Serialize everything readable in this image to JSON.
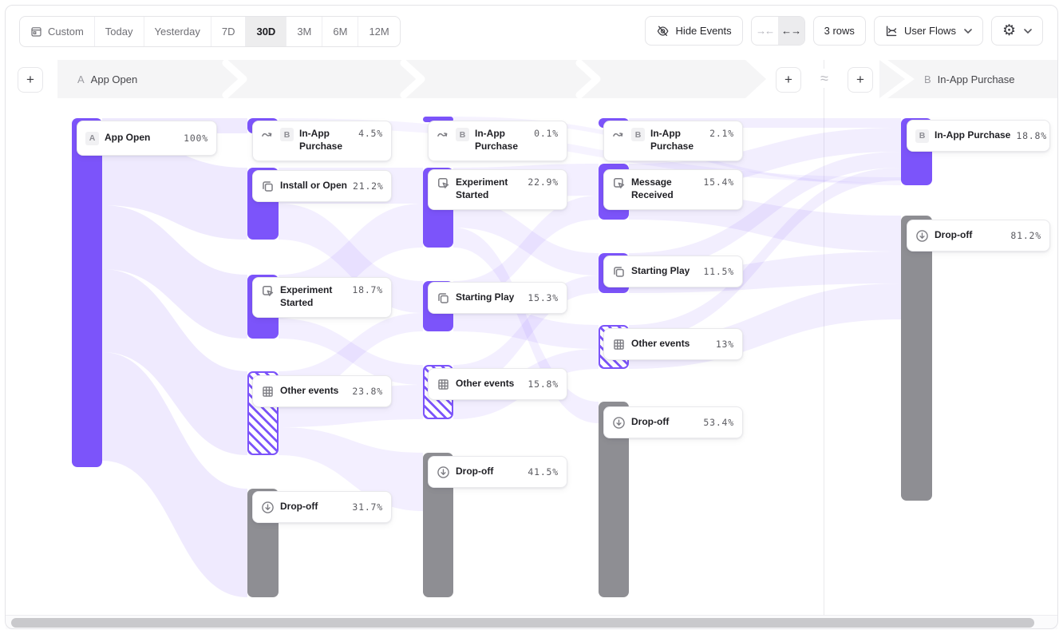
{
  "toolbar": {
    "date_ranges": [
      "Custom",
      "Today",
      "Yesterday",
      "7D",
      "30D",
      "3M",
      "6M",
      "12M"
    ],
    "active_range": "30D",
    "hide_events": "Hide Events",
    "rows": "3 rows",
    "view": "User Flows"
  },
  "steps": {
    "a_label": "A",
    "a_event": "App Open",
    "b_label": "B",
    "b_event": "In-App Purchase",
    "approx": "≈",
    "add": "+"
  },
  "flow_nodes": {
    "c0_app_open": {
      "label": "App Open",
      "pct": "100%",
      "badge": "A"
    },
    "c1_inapp": {
      "label": "In-App Purchase",
      "pct": "4.5%",
      "badge": "B"
    },
    "c1_install": {
      "label": "Install or Open",
      "pct": "21.2%"
    },
    "c1_experiment": {
      "label": "Experiment Started",
      "pct": "18.7%"
    },
    "c1_other": {
      "label": "Other events",
      "pct": "23.8%"
    },
    "c1_dropoff": {
      "label": "Drop-off",
      "pct": "31.7%"
    },
    "c2_inapp": {
      "label": "In-App Purchase",
      "pct": "0.1%",
      "badge": "B"
    },
    "c2_experiment": {
      "label": "Experiment Started",
      "pct": "22.9%"
    },
    "c2_starting": {
      "label": "Starting Play",
      "pct": "15.3%"
    },
    "c2_other": {
      "label": "Other events",
      "pct": "15.8%"
    },
    "c2_dropoff": {
      "label": "Drop-off",
      "pct": "41.5%"
    },
    "c3_inapp": {
      "label": "In-App Purchase",
      "pct": "2.1%",
      "badge": "B"
    },
    "c3_message": {
      "label": "Message Received",
      "pct": "15.4%"
    },
    "c3_starting": {
      "label": "Starting Play",
      "pct": "11.5%"
    },
    "c3_other": {
      "label": "Other events",
      "pct": "13%"
    },
    "c3_dropoff": {
      "label": "Drop-off",
      "pct": "53.4%"
    },
    "c4_inapp": {
      "label": "In-App Purchase",
      "pct": "18.8%",
      "badge": "B"
    },
    "c4_dropoff": {
      "label": "Drop-off",
      "pct": "81.2%"
    }
  },
  "colors": {
    "purple": "#7C54FA",
    "gray": "#8E8E93",
    "banner": "#F5F5F6"
  }
}
